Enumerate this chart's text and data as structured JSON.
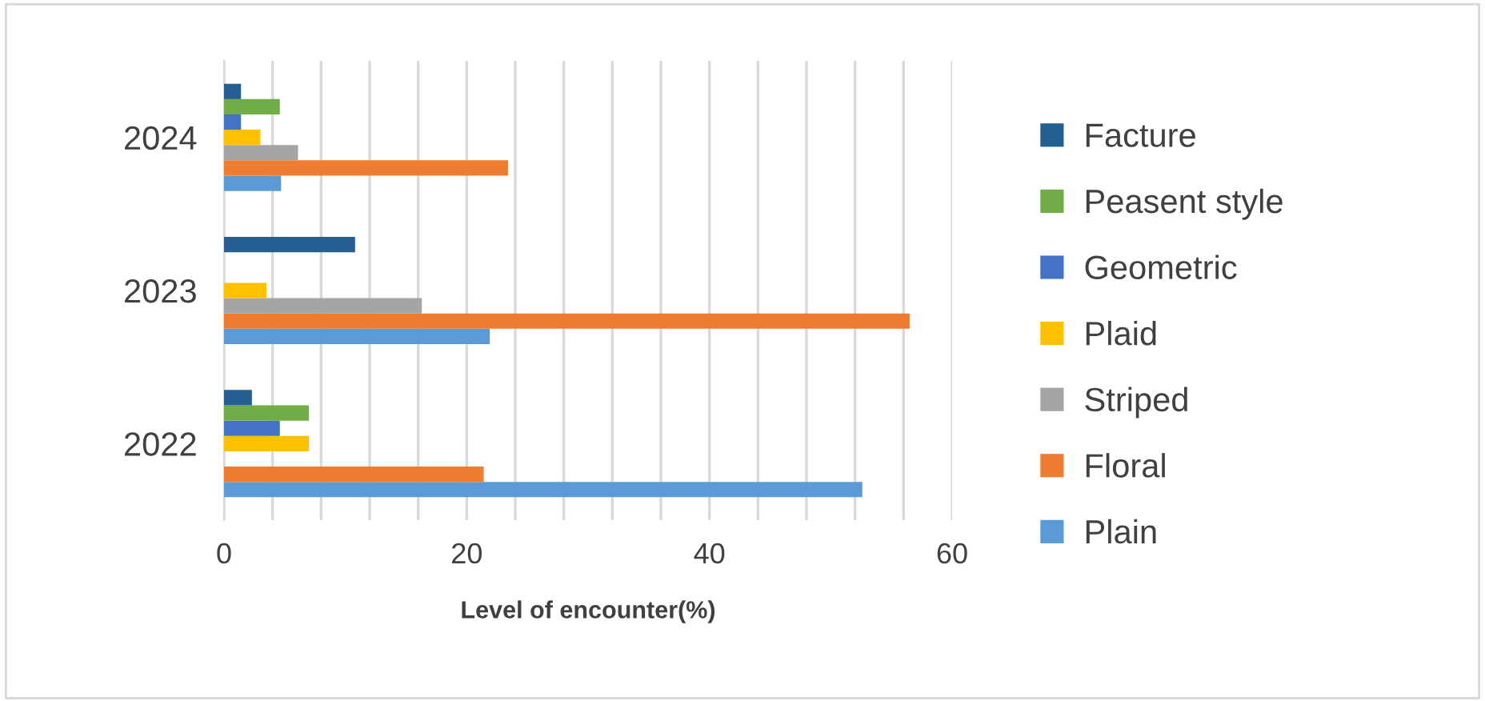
{
  "chart_data": {
    "type": "bar",
    "orientation": "horizontal",
    "xlabel": "Level of encounter(%)",
    "categories": [
      "2024",
      "2023",
      "2022"
    ],
    "series": [
      {
        "name": "Plain",
        "color": "#5b9bd5",
        "values": [
          4.7,
          21.9,
          52.6
        ]
      },
      {
        "name": "Floral",
        "color": "#ed7d31",
        "values": [
          23.4,
          56.5,
          21.4
        ]
      },
      {
        "name": "Striped",
        "color": "#a5a5a5",
        "values": [
          6.1,
          16.3,
          null
        ]
      },
      {
        "name": "Plaid",
        "color": "#ffc000",
        "values": [
          3.0,
          3.5,
          7.0
        ]
      },
      {
        "name": "Geometric",
        "color": "#4472c4",
        "values": [
          1.4,
          null,
          4.6
        ]
      },
      {
        "name": "Peasent style",
        "color": "#70ad47",
        "values": [
          4.6,
          null,
          7.0
        ]
      },
      {
        "name": "Facture",
        "color": "#255e91",
        "values": [
          1.4,
          10.8,
          2.3
        ]
      }
    ],
    "xlim": [
      0,
      60
    ],
    "xticks": [
      0,
      {
        "value": 4,
        "label": null
      },
      {
        "value": 8,
        "label": null
      },
      {
        "value": 12,
        "label": null
      },
      {
        "value": 16,
        "label": null
      },
      20,
      {
        "value": 24,
        "label": null
      },
      {
        "value": 28,
        "label": null
      },
      {
        "value": 32,
        "label": null
      },
      {
        "value": 36,
        "label": null
      },
      40,
      {
        "value": 44,
        "label": null
      },
      {
        "value": 48,
        "label": null
      },
      {
        "value": 52,
        "label": null
      },
      {
        "value": 56,
        "label": null
      },
      60
    ],
    "grid": "x",
    "legend": "right"
  }
}
